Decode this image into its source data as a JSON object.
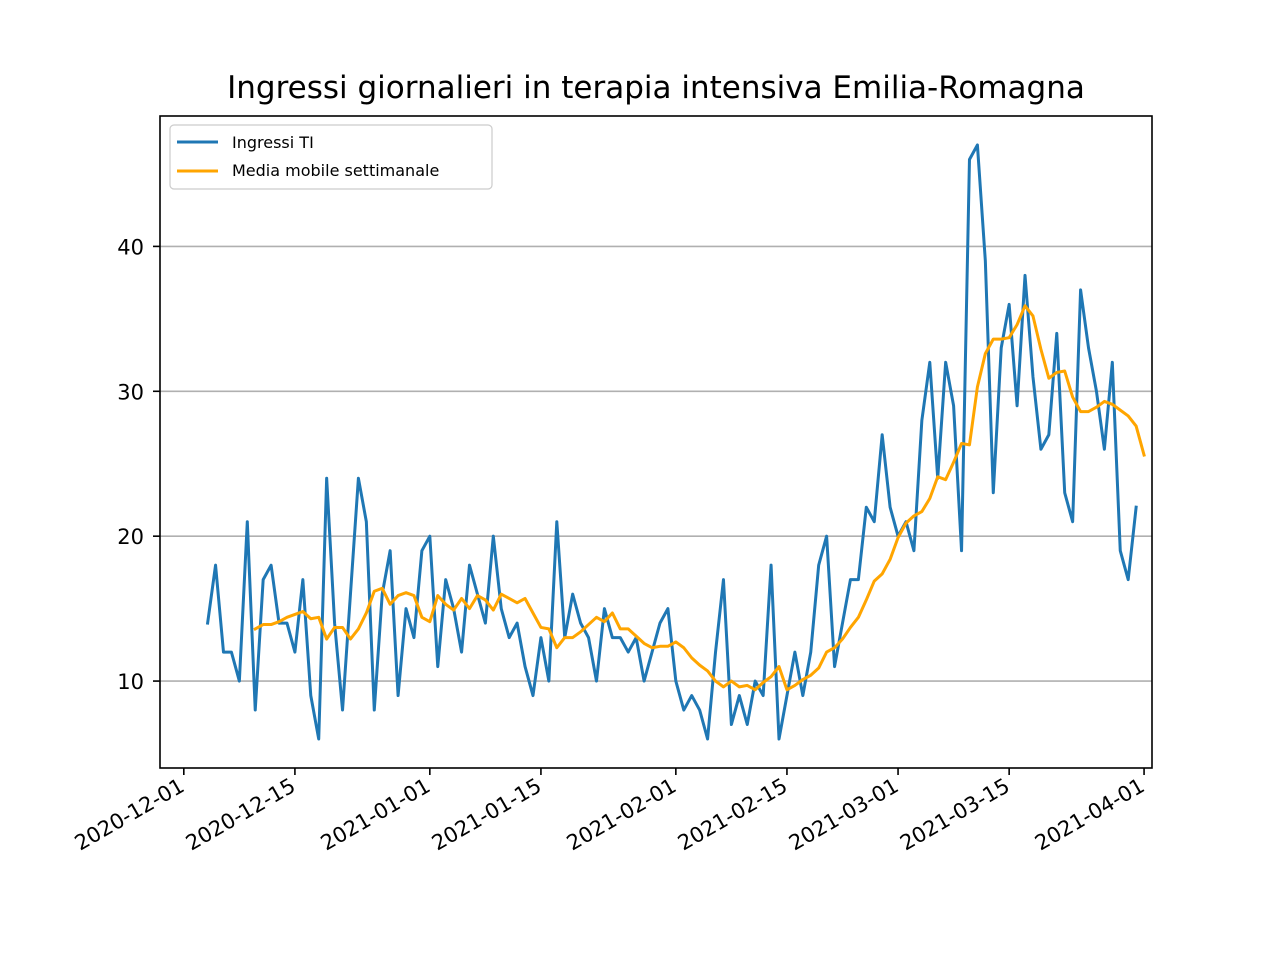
{
  "chart_data": {
    "type": "line",
    "title": "Ingressi giornalieri in terapia intensiva Emilia-Romagna",
    "xlabel": "",
    "ylabel": "",
    "x_start": "2020-12-04",
    "xlim": [
      "2020-11-28",
      "2021-04-02"
    ],
    "ylim": [
      4,
      49
    ],
    "grid": "y",
    "legend_position": "top-left",
    "x_ticks": [
      "2020-12-01",
      "2020-12-15",
      "2021-01-01",
      "2021-01-15",
      "2021-02-01",
      "2021-02-15",
      "2021-03-01",
      "2021-03-15",
      "2021-04-01"
    ],
    "y_ticks": [
      10,
      20,
      30,
      40
    ],
    "series": [
      {
        "name": "Ingressi TI",
        "color": "#1f77b4",
        "values": [
          14,
          18,
          12,
          12,
          10,
          21,
          8,
          17,
          18,
          14,
          14,
          12,
          17,
          9,
          6,
          24,
          14,
          8,
          16,
          24,
          21,
          8,
          16,
          19,
          9,
          15,
          13,
          19,
          20,
          11,
          17,
          15,
          12,
          18,
          16,
          14,
          20,
          15,
          13,
          14,
          11,
          9,
          13,
          10,
          21,
          13,
          16,
          14,
          13,
          10,
          15,
          13,
          13,
          12,
          13,
          10,
          12,
          14,
          15,
          10,
          8,
          9,
          8,
          6,
          12,
          17,
          7,
          9,
          7,
          10,
          9,
          18,
          6,
          9,
          12,
          9,
          12,
          18,
          20,
          11,
          14,
          17,
          17,
          22,
          21,
          27,
          22,
          20,
          21,
          19,
          28,
          32,
          24,
          32,
          29,
          19,
          46,
          47,
          39,
          23,
          33,
          36,
          29,
          38,
          31,
          26,
          27,
          34,
          23,
          21,
          37,
          33,
          30,
          26,
          32,
          19,
          17,
          22
        ]
      },
      {
        "name": "Media mobile settimanale",
        "color": "#ffa500",
        "start_index": 6,
        "values": [
          13.6,
          13.9,
          13.9,
          14.1,
          14.4,
          14.6,
          14.8,
          14.3,
          14.4,
          12.9,
          13.7,
          13.7,
          12.9,
          13.6,
          14.7,
          16.2,
          16.4,
          15.3,
          15.9,
          16.1,
          15.9,
          14.4,
          14.1,
          15.9,
          15.3,
          14.9,
          15.7,
          15.0,
          15.9,
          15.6,
          14.9,
          16.0,
          15.7,
          15.4,
          15.7,
          14.7,
          13.7,
          13.6,
          12.3,
          13.0,
          13.0,
          13.4,
          13.9,
          14.4,
          14.1,
          14.7,
          13.6,
          13.6,
          13.1,
          12.6,
          12.3,
          12.4,
          12.4,
          12.7,
          12.3,
          11.6,
          11.1,
          10.7,
          10.0,
          9.6,
          10.0,
          9.6,
          9.7,
          9.4,
          9.9,
          10.3,
          11.0,
          9.4,
          9.7,
          10.1,
          10.4,
          10.9,
          12.0,
          12.3,
          12.9,
          13.7,
          14.4,
          15.6,
          16.9,
          17.4,
          18.4,
          19.9,
          20.9,
          21.4,
          21.7,
          22.6,
          24.1,
          23.9,
          25.1,
          26.4,
          26.3,
          30.3,
          32.6,
          33.6,
          33.6,
          33.7,
          34.6,
          35.9,
          35.2,
          32.9,
          30.9,
          31.3,
          31.4,
          29.6,
          28.6,
          28.6,
          28.9,
          29.3,
          29.1,
          28.7,
          28.3,
          27.6,
          25.6
        ]
      }
    ]
  }
}
